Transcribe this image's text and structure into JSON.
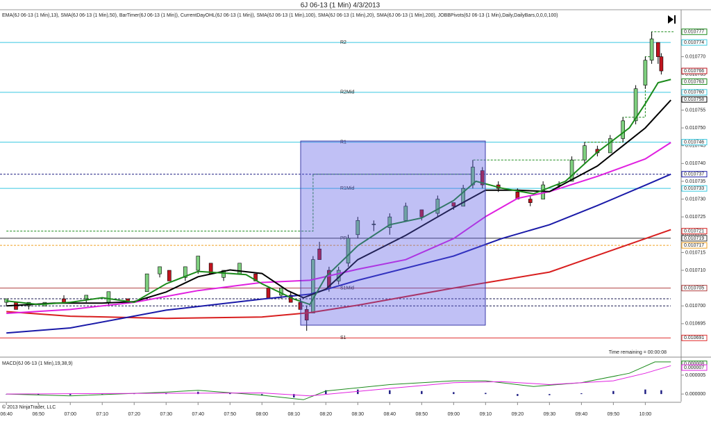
{
  "header": {
    "title": "6J 06-13 (1 Min)  4/3/2013",
    "indicators": "EMA(6J 06-13 (1 Min),13), SMA(6J 06-13 (1 Min),50), BarTimer(6J 06-13 (1 Min)), CurrentDayOHL(6J 06-13 (1 Min)), SMA(6J 06-13 (1 Min),100), SMA(6J 06-13 (1 Min),20), SMA(6J 06-13 (1 Min),200), JOBBPivots(6J 06-13 (1 Min),Daily,DailyBars,0,0,0,100)",
    "time_remaining": "Time remaining = 00:00:08",
    "copyright": "© 2013 NinjaTrader, LLC"
  },
  "chart_data": [
    {
      "type": "candlestick",
      "xlim": [
        "06:38",
        "10:11"
      ],
      "xticks": [
        "06:40",
        "06:50",
        "07:00",
        "07:10",
        "07:20",
        "07:30",
        "07:40",
        "07:50",
        "08:00",
        "08:10",
        "08:20",
        "08:30",
        "08:40",
        "08:50",
        "09:00",
        "09:10",
        "09:20",
        "09:30",
        "09:40",
        "09:50",
        "10:00"
      ],
      "ylim": [
        0.010686,
        0.010783
      ],
      "yticks": [
        0.010695,
        {
          "value": 0.0107,
          "label": "0.010700"
        },
        0.010705,
        {
          "value": 0.01071,
          "label": "0.010710"
        },
        0.010715,
        {
          "value": 0.01072,
          "label": "0.010720"
        },
        0.010725,
        {
          "value": 0.01073,
          "label": "0.010730"
        },
        0.010735,
        {
          "value": 0.01074,
          "label": "0.010740"
        },
        0.010745,
        {
          "value": 0.01075,
          "label": "0.010750"
        },
        0.010755,
        {
          "value": 0.01076,
          "label": "0.010760"
        },
        0.010765,
        {
          "value": 0.01077,
          "label": "0.010770"
        }
      ],
      "up_color": "#7fd07f",
      "down_color": "#c0141e",
      "candles": {
        "x": [
          "06:40",
          "06:43",
          "06:47",
          "06:52",
          "06:58",
          "07:05",
          "07:12",
          "07:18",
          "07:24",
          "07:28",
          "07:31",
          "07:36",
          "07:40",
          "07:44",
          "07:48",
          "07:53",
          "07:58",
          "08:02",
          "08:06",
          "08:09",
          "08:12",
          "08:14",
          "08:16",
          "08:18",
          "08:21",
          "08:24",
          "08:27",
          "08:30",
          "08:35",
          "08:40",
          "08:45",
          "08:50",
          "08:55",
          "09:00",
          "09:03",
          "09:06",
          "09:09",
          "09:14",
          "09:20",
          "09:24",
          "09:28",
          "09:33",
          "09:37",
          "09:41",
          "09:45",
          "09:49",
          "09:53",
          "09:57",
          "10:00",
          "10:02",
          "10:04",
          "10:05"
        ],
        "open": [
          0.010701,
          0.010701,
          0.0107,
          0.0107,
          0.010702,
          0.010702,
          0.010701,
          0.010702,
          0.010704,
          0.010709,
          0.01071,
          0.010708,
          0.01071,
          0.010712,
          0.010708,
          0.010709,
          0.010709,
          0.010705,
          0.010703,
          0.010703,
          0.010701,
          0.010699,
          0.010698,
          0.010716,
          0.01071,
          0.010707,
          0.010712,
          0.01072,
          0.010723,
          0.010722,
          0.010724,
          0.010727,
          0.010726,
          0.010729,
          0.010728,
          0.010734,
          0.010738,
          0.010734,
          0.010732,
          0.01073,
          0.01073,
          0.010734,
          0.010735,
          0.010741,
          0.010744,
          0.010743,
          0.010747,
          0.010752,
          0.010762,
          0.010769,
          0.010774,
          0.01077
        ],
        "high": [
          0.010702,
          0.010701,
          0.010701,
          0.010701,
          0.010703,
          0.010703,
          0.010704,
          0.010702,
          0.010709,
          0.010711,
          0.01071,
          0.010711,
          0.010714,
          0.010712,
          0.01071,
          0.010712,
          0.010709,
          0.010705,
          0.010705,
          0.010704,
          0.010702,
          0.0107,
          0.010714,
          0.010718,
          0.010711,
          0.010711,
          0.01072,
          0.010725,
          0.010724,
          0.010726,
          0.010729,
          0.010727,
          0.010731,
          0.010729,
          0.010734,
          0.010741,
          0.010739,
          0.010735,
          0.010733,
          0.010731,
          0.010735,
          0.010735,
          0.010742,
          0.010746,
          0.010745,
          0.010748,
          0.010753,
          0.010762,
          0.01077,
          0.010777,
          0.010774,
          0.010771
        ],
        "low": [
          0.0107,
          0.010699,
          0.010699,
          0.0107,
          0.010701,
          0.010701,
          0.0107,
          0.010701,
          0.010704,
          0.010708,
          0.010707,
          0.010707,
          0.010709,
          0.010709,
          0.010707,
          0.010709,
          0.010707,
          0.010702,
          0.010702,
          0.010701,
          0.010699,
          0.010693,
          0.010698,
          0.010713,
          0.010704,
          0.010706,
          0.010711,
          0.010719,
          0.010721,
          0.01072,
          0.010724,
          0.010724,
          0.010725,
          0.010727,
          0.010728,
          0.010733,
          0.010733,
          0.010732,
          0.01073,
          0.010728,
          0.01073,
          0.010733,
          0.010735,
          0.01074,
          0.010742,
          0.010743,
          0.010746,
          0.010751,
          0.010761,
          0.010768,
          0.010768,
          0.010765
        ],
        "close": [
          0.010702,
          0.010699,
          0.010701,
          0.010701,
          0.010701,
          0.010703,
          0.010704,
          0.010701,
          0.010709,
          0.010711,
          0.010707,
          0.010711,
          0.010714,
          0.010709,
          0.01071,
          0.010712,
          0.010707,
          0.010702,
          0.010705,
          0.010701,
          0.010699,
          0.010696,
          0.010713,
          0.010713,
          0.010705,
          0.01071,
          0.010719,
          0.010724,
          0.010723,
          0.010725,
          0.010728,
          0.010725,
          0.01073,
          0.010728,
          0.010733,
          0.010739,
          0.010734,
          0.010733,
          0.01073,
          0.010729,
          0.010734,
          0.010734,
          0.010741,
          0.010745,
          0.010743,
          0.010747,
          0.010752,
          0.010761,
          0.010769,
          0.010775,
          0.01077,
          0.010766
        ]
      },
      "series": [
        {
          "color": "#d81e1e",
          "x": [
            "06:40",
            "07:00",
            "07:30",
            "08:00",
            "08:15",
            "08:30",
            "09:00",
            "09:30",
            "10:00",
            "10:08"
          ],
          "values": [
            0.0106984,
            0.0106971,
            0.0106965,
            0.0106969,
            0.0106981,
            0.0107002,
            0.010705,
            0.0107095,
            0.0107189,
            0.0107214
          ]
        },
        {
          "color": "#1a1aa8",
          "x": [
            "06:40",
            "07:00",
            "07:30",
            "08:00",
            "08:15",
            "08:30",
            "09:00",
            "09:15",
            "09:30",
            "09:45",
            "10:00",
            "10:08"
          ],
          "values": [
            0.0106924,
            0.0106938,
            0.0106988,
            0.0107019,
            0.0107033,
            0.0107072,
            0.010714,
            0.0107189,
            0.0107228,
            0.0107282,
            0.0107339,
            0.010737
          ]
        },
        {
          "color": "#e020e0",
          "x": [
            "06:40",
            "07:00",
            "07:20",
            "07:40",
            "08:00",
            "08:15",
            "08:30",
            "08:45",
            "09:00",
            "09:10",
            "09:20",
            "09:30",
            "09:45",
            "10:00",
            "10:08"
          ],
          "values": [
            0.0106979,
            0.010699,
            0.010701,
            0.0107043,
            0.0107066,
            0.0107072,
            0.0107103,
            0.010713,
            0.0107189,
            0.0107251,
            0.0107302,
            0.0107321,
            0.0107364,
            0.0107413,
            0.0107459
          ]
        },
        {
          "color": "#000000",
          "x": [
            "06:40",
            "06:55",
            "07:10",
            "07:20",
            "07:30",
            "07:40",
            "07:50",
            "08:00",
            "08:08",
            "08:13",
            "08:20",
            "08:30",
            "08:45",
            "09:00",
            "09:10",
            "09:20",
            "09:30",
            "09:45",
            "10:00",
            "10:08"
          ],
          "values": [
            0.0107,
            0.0107008,
            0.0107008,
            0.0107012,
            0.0107039,
            0.0107082,
            0.0107101,
            0.0107091,
            0.0107043,
            0.0107023,
            0.0107047,
            0.010713,
            0.0107198,
            0.0107276,
            0.0107325,
            0.0107325,
            0.0107321,
            0.0107393,
            0.01075,
            0.0107578
          ]
        },
        {
          "color": "#1a8a1a",
          "x": [
            "06:40",
            "06:50",
            "07:00",
            "07:10",
            "07:20",
            "07:30",
            "07:40",
            "07:50",
            "07:55",
            "08:00",
            "08:10",
            "08:15",
            "08:20",
            "08:30",
            "08:40",
            "08:50",
            "09:00",
            "09:07",
            "09:15",
            "09:25",
            "09:35",
            "09:45",
            "09:55",
            "10:00",
            "10:04",
            "10:08"
          ],
          "values": [
            0.0107014,
            0.0107004,
            0.010701,
            0.0107023,
            0.010701,
            0.0107062,
            0.0107097,
            0.0107091,
            0.0107088,
            0.0107062,
            0.0107019,
            0.0107004,
            0.0107082,
            0.0107169,
            0.0107228,
            0.0107247,
            0.0107296,
            0.010735,
            0.0107331,
            0.0107315,
            0.010735,
            0.0107432,
            0.01075,
            0.0107568,
            0.0107627,
            0.0107636
          ]
        }
      ],
      "day_high": {
        "color": "#1a8a1a",
        "x": [
          "06:40",
          "08:16",
          "09:06",
          "09:41",
          "09:53",
          "10:00",
          "10:02"
        ],
        "values": [
          0.010721,
          0.010737,
          0.010741,
          0.010746,
          0.010753,
          0.01077,
          0.010777
        ]
      },
      "levels": [
        {
          "label": "R2",
          "value": 0.010774,
          "color": "#38c8e0"
        },
        {
          "label": "R2Mid",
          "value": 0.01076,
          "color": "#38c8e0"
        },
        {
          "label": "R1",
          "value": 0.010746,
          "color": "#38c8e0"
        },
        {
          "label": "R1Mid",
          "value": 0.010733,
          "color": "#38c8e0"
        },
        {
          "label": "PP",
          "value": 0.010719,
          "color": "#333333"
        },
        {
          "label": "S1Mid",
          "value": 0.010705,
          "color": "#b04040"
        },
        {
          "label": "S1",
          "value": 0.010691,
          "color": "#e03030"
        },
        {
          "value": 0.010717,
          "color": "#f0a020"
        },
        {
          "value": 0.010737,
          "color": "#1a1a80"
        },
        {
          "value": 0.010702,
          "color": "#1a1a50"
        },
        {
          "value": 0.0107,
          "color": "#1a1a50"
        }
      ],
      "axis_markers": [
        {
          "value": 0.010777,
          "color": "#1a8a1a"
        },
        {
          "value": 0.010774,
          "color": "#38c8e0"
        },
        {
          "value": 0.010766,
          "color": "#c0141e"
        },
        {
          "value": 0.010763,
          "color": "#1a8a1a"
        },
        {
          "value": 0.01076,
          "label": "0.010760",
          "color": "#38c8e0"
        },
        {
          "value": 0.010758,
          "color": "#000000"
        },
        {
          "value": 0.010746,
          "color": "#38c8e0"
        },
        {
          "value": 0.010737,
          "color": "#1a1aa8"
        },
        {
          "value": 0.010733,
          "color": "#38c8e0"
        },
        {
          "value": 0.010721,
          "color": "#d81e1e"
        },
        {
          "value": 0.010719,
          "color": "#333333"
        },
        {
          "value": 0.010717,
          "color": "#f0a020"
        },
        {
          "value": 0.010705,
          "color": "#b04040"
        },
        {
          "value": 0.010691,
          "color": "#e03030"
        }
      ]
    },
    {
      "type": "macd",
      "title": "MACD(6J 06-13 (1 Min),19,38,9)",
      "ylim": [
        -2e-06,
        9.4e-06
      ],
      "yticks": [
        {
          "value": 0,
          "label": "0.000000"
        },
        5e-06
      ],
      "series": [
        {
          "color": "#1a8a1a",
          "x": [
            "06:40",
            "07:00",
            "07:30",
            "07:40",
            "08:00",
            "08:13",
            "08:20",
            "08:40",
            "09:00",
            "09:10",
            "09:25",
            "09:40",
            "09:55",
            "10:03",
            "10:08"
          ],
          "values": [
            0,
            -5e-07,
            5e-07,
            1e-06,
            -3e-07,
            -1.5e-06,
            8e-07,
            2.5e-06,
            3.5e-06,
            3.5e-06,
            2e-06,
            3e-06,
            5.5e-06,
            8.5e-06,
            8.5e-06
          ]
        },
        {
          "color": "#e020e0",
          "x": [
            "06:40",
            "07:30",
            "08:00",
            "08:15",
            "08:40",
            "09:00",
            "09:15",
            "09:30",
            "09:50",
            "10:00",
            "10:08"
          ],
          "values": [
            0,
            2e-07,
            3e-07,
            -5e-07,
            1.5e-06,
            3e-06,
            3.3e-06,
            2.5e-06,
            3.5e-06,
            5.5e-06,
            7.5e-06
          ]
        }
      ],
      "histogram": {
        "color": "#1a1a80",
        "x": [
          "06:40",
          "06:50",
          "07:00",
          "07:10",
          "07:20",
          "07:30",
          "07:40",
          "07:50",
          "08:00",
          "08:10",
          "08:20",
          "08:30",
          "08:40",
          "08:50",
          "09:00",
          "09:10",
          "09:20",
          "09:30",
          "09:40",
          "09:50",
          "10:00",
          "10:05"
        ],
        "values": [
          0,
          -2e-07,
          -3e-07,
          -2e-07,
          1e-07,
          3e-07,
          6e-07,
          4e-07,
          -4e-07,
          -9e-07,
          1e-06,
          1.2e-06,
          1e-06,
          8e-07,
          5e-07,
          3e-07,
          -5e-07,
          -3e-07,
          2e-07,
          8e-07,
          1.2e-06,
          1e-06
        ]
      },
      "axis_markers": [
        {
          "value": 8e-06,
          "color": "#1a8a1a"
        },
        {
          "value": 7e-06,
          "color": "#e020e0"
        }
      ]
    }
  ]
}
